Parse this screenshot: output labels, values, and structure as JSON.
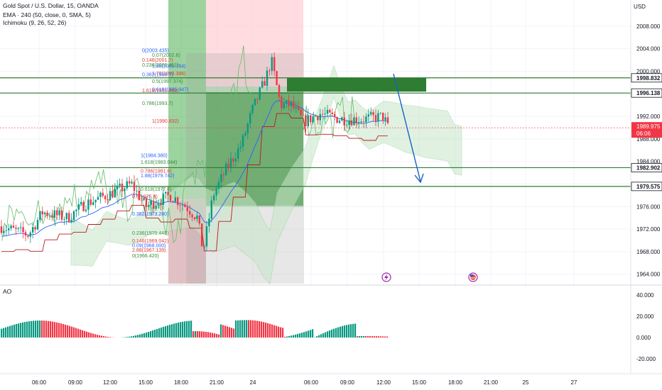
{
  "header": {
    "symbol_line": "Gold Spot / U.S. Dollar, 15, OANDA",
    "ema_line": "EMA · 240 (50, close, 0, SMA, 5)",
    "ichimoku_line": "Ichimoku (9, 26, 52, 26)",
    "ao_label": "AO",
    "currency": "USD"
  },
  "colors": {
    "up": "#089981",
    "down": "#f23645",
    "ema": "#2962ff",
    "zone": "#2e7d32",
    "cloud": "#a5d6a7"
  },
  "chart_data": [
    {
      "type": "candlestick",
      "title": "Gold Spot / U.S. Dollar, 15, OANDA",
      "y_axis": {
        "ticks": [
          "2008.000",
          "2004.000",
          "2000.000",
          "1996.000",
          "1992.000",
          "1988.000",
          "1984.000",
          "1980.000",
          "1976.000",
          "1972.000",
          "1968.000",
          "1964.000"
        ],
        "range": [
          1962,
          2012
        ]
      },
      "x_axis": {
        "ticks": [
          "06:00",
          "09:00",
          "12:00",
          "15:00",
          "18:00",
          "21:00",
          "24",
          "06:00",
          "09:00",
          "12:00",
          "15:00",
          "18:00",
          "21:00",
          "25",
          "27"
        ]
      },
      "price_levels": [
        {
          "label": "1998.832",
          "value": 1998.832
        },
        {
          "label": "1996.138",
          "value": 1996.138
        },
        {
          "label": "1982.902",
          "value": 1982.902
        },
        {
          "label": "1979.575",
          "value": 1979.575
        }
      ],
      "current_price": {
        "label": "1989.975",
        "countdown": "06:06",
        "value": 1989.975
      },
      "fib_left_labels": [
        {
          "text": "0(2003.435)",
          "value": 2003.4
        },
        {
          "text": "0.07(2002.6)",
          "value": 2002.6
        },
        {
          "text": "0.146(2001.7)",
          "value": 2001.7
        },
        {
          "text": "1.88(2000.784)",
          "value": 2000.6
        },
        {
          "text": "0.236(2000.461)",
          "value": 2000.8
        },
        {
          "text": "1.78(1999.386)",
          "value": 1999.3
        },
        {
          "text": "0.382(1998.7)",
          "value": 1999.1
        },
        {
          "text": "0.5(1997.374)",
          "value": 1997.9
        },
        {
          "text": "1.618(1995.468)",
          "value": 1996.3
        },
        {
          "text": "0.618(1995.947)",
          "value": 1996.5
        },
        {
          "text": "0.786(1993.7)",
          "value": 1994.0
        },
        {
          "text": "1(1990.832)",
          "value": 1990.9
        },
        {
          "text": "1(1984.380)",
          "value": 1984.8
        },
        {
          "text": "1.618(1983.044)",
          "value": 1983.6
        },
        {
          "text": "0.786(1981.6)",
          "value": 1982.0
        },
        {
          "text": "1.88(1979.742)",
          "value": 1981.2
        },
        {
          "text": "0.618(1977.6)",
          "value": 1978.8
        },
        {
          "text": "0.5(1975.9)",
          "value": 1977.5
        },
        {
          "text": "0.382(1973.280)",
          "value": 1974.4
        },
        {
          "text": "0.236(1970.446)",
          "value": 1971.0
        },
        {
          "text": "0.146(1969.042)",
          "value": 1969.6
        },
        {
          "text": "0.09(1968.000)",
          "value": 1968.8
        },
        {
          "text": "0(1966.420)",
          "value": 1967.0
        },
        {
          "text": "2.88(1967.139)",
          "value": 1968.0
        }
      ]
    },
    {
      "type": "bar",
      "title": "AO",
      "y_axis": {
        "ticks": [
          "40.000",
          "20.000",
          "0.000",
          "-20.000"
        ],
        "range": [
          -30,
          42
        ]
      }
    }
  ]
}
